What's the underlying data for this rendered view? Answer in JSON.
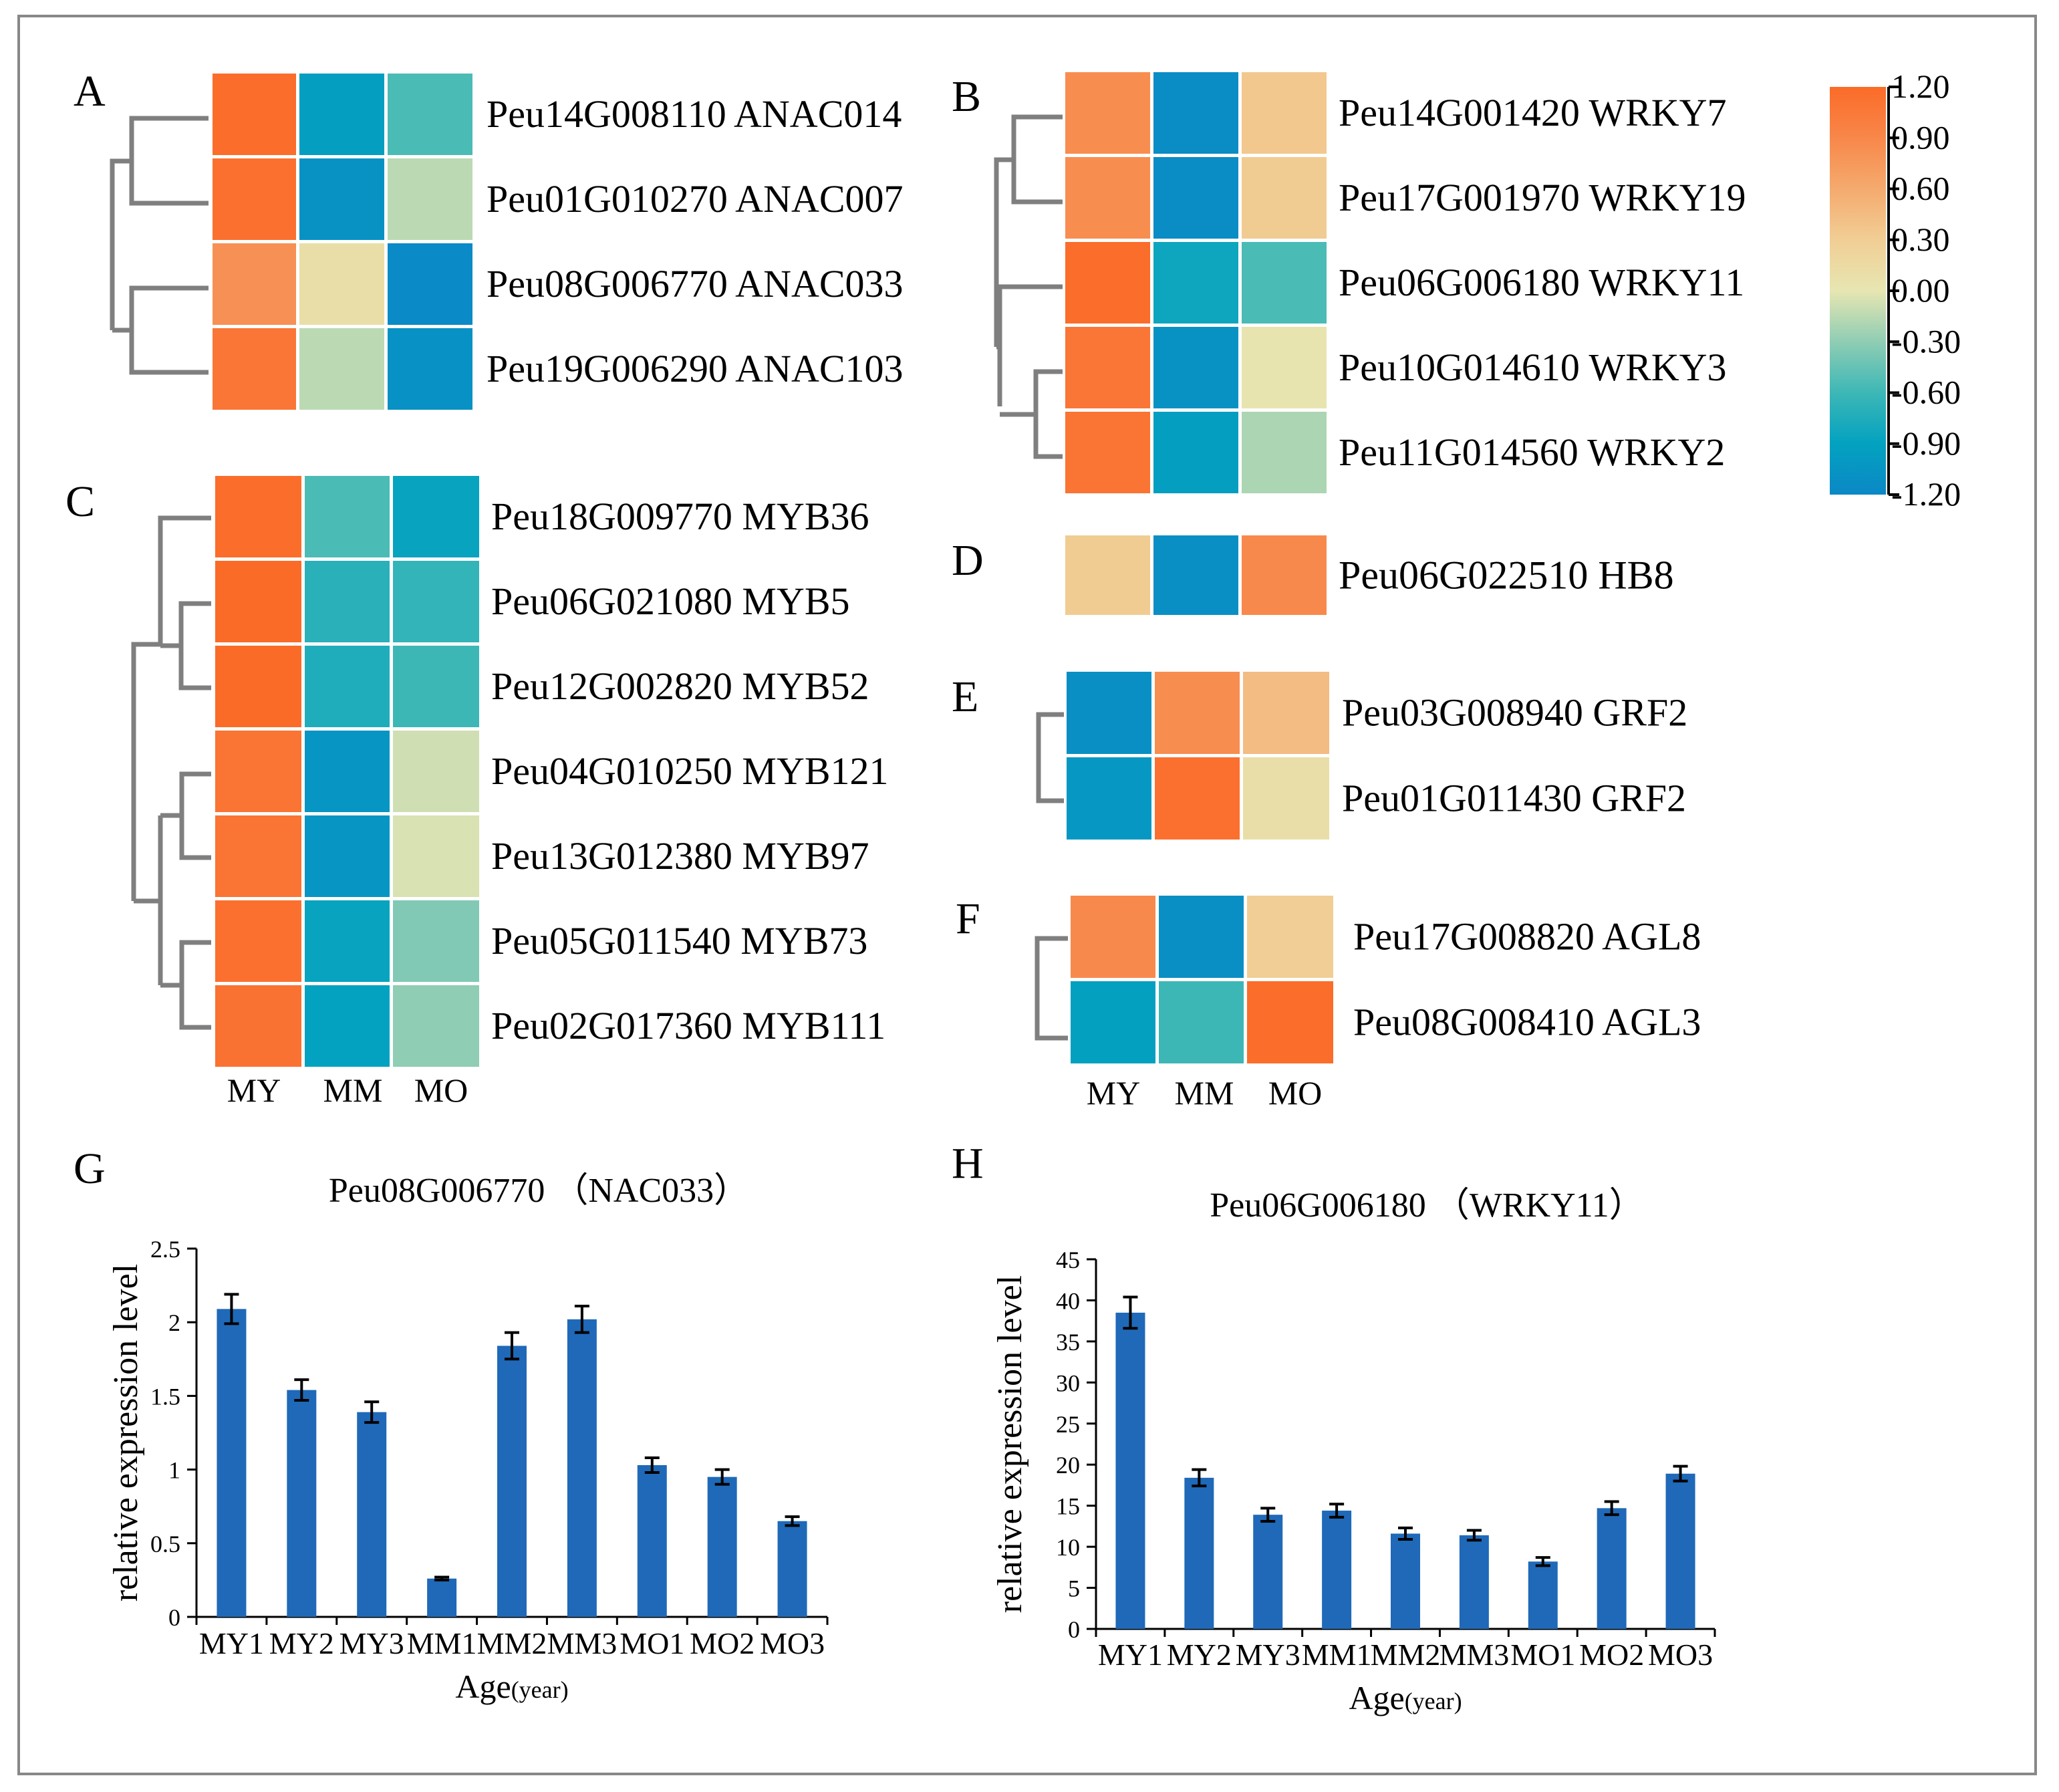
{
  "panel_labels": {
    "A": "A",
    "B": "B",
    "C": "C",
    "D": "D",
    "E": "E",
    "F": "F",
    "G": "G",
    "H": "H"
  },
  "palette": {
    "stops": [
      {
        "v": -1.2,
        "c": "#0B88C6"
      },
      {
        "v": -0.9,
        "c": "#03A2C0"
      },
      {
        "v": -0.6,
        "c": "#3DB7B6"
      },
      {
        "v": -0.3,
        "c": "#8FCDB4"
      },
      {
        "v": 0.0,
        "c": "#E7E6B2"
      },
      {
        "v": 0.3,
        "c": "#F1CE95"
      },
      {
        "v": 0.6,
        "c": "#F5AA6E"
      },
      {
        "v": 0.9,
        "c": "#F8874A"
      },
      {
        "v": 1.2,
        "c": "#FB6B28"
      }
    ],
    "bar_color": "#1F69B8",
    "dendro_color": "#7f7f7f"
  },
  "legend": {
    "ticks": [
      "1.20",
      "0.90",
      "0.60",
      "0.30",
      "0.00",
      "-0.30",
      "-0.60",
      "-0.90",
      "-1.20"
    ]
  },
  "heatmaps": {
    "A": {
      "columns": [
        "MY",
        "MM",
        "MO"
      ],
      "rows": [
        {
          "label": "Peu14G008110 ANAC014",
          "values": [
            1.18,
            -0.95,
            -0.55
          ]
        },
        {
          "label": "Peu01G010270 ANAC007",
          "values": [
            1.15,
            -1.08,
            -0.15
          ]
        },
        {
          "label": "Peu08G006770 ANAC033",
          "values": [
            0.82,
            0.1,
            -1.18
          ]
        },
        {
          "label": "Peu19G006290 ANAC103",
          "values": [
            1.08,
            -0.15,
            -1.1
          ]
        }
      ]
    },
    "B": {
      "columns": [
        "MY",
        "MM",
        "MO"
      ],
      "rows": [
        {
          "label": "Peu14G001420 WRKY7",
          "values": [
            0.85,
            -1.15,
            0.35
          ]
        },
        {
          "label": "Peu17G001970 WRKY19",
          "values": [
            0.85,
            -1.15,
            0.32
          ]
        },
        {
          "label": "Peu06G006180 WRKY11",
          "values": [
            1.18,
            -0.85,
            -0.55
          ]
        },
        {
          "label": "Peu10G014610 WRKY3",
          "values": [
            1.08,
            -1.08,
            0.02
          ]
        },
        {
          "label": "Peu11G014560 WRKY2",
          "values": [
            1.1,
            -0.95,
            -0.2
          ]
        }
      ]
    },
    "C": {
      "columns": [
        "MY",
        "MM",
        "MO"
      ],
      "rows": [
        {
          "label": "Peu18G009770 MYB36",
          "values": [
            1.18,
            -0.55,
            -0.88
          ]
        },
        {
          "label": "Peu06G021080 MYB5",
          "values": [
            1.2,
            -0.7,
            -0.65
          ]
        },
        {
          "label": "Peu12G002820 MYB52",
          "values": [
            1.2,
            -0.75,
            -0.6
          ]
        },
        {
          "label": "Peu04G010250 MYB121",
          "values": [
            1.1,
            -1.05,
            -0.08
          ]
        },
        {
          "label": "Peu13G012380 MYB97",
          "values": [
            1.1,
            -1.05,
            -0.05
          ]
        },
        {
          "label": "Peu05G011540 MYB73",
          "values": [
            1.15,
            -0.88,
            -0.35
          ]
        },
        {
          "label": "Peu02G017360 MYB111",
          "values": [
            1.12,
            -0.9,
            -0.3
          ]
        }
      ]
    },
    "D": {
      "columns": [
        "MY",
        "MM",
        "MO"
      ],
      "rows": [
        {
          "label": "Peu06G022510 HB8",
          "values": [
            0.32,
            -1.12,
            0.88
          ]
        }
      ]
    },
    "E": {
      "columns": [
        "MY",
        "MM",
        "MO"
      ],
      "rows": [
        {
          "label": "Peu03G008940 GRF2",
          "values": [
            -1.12,
            0.85,
            0.45
          ]
        },
        {
          "label": "Peu01G011430 GRF2",
          "values": [
            -1.02,
            1.15,
            0.1
          ]
        }
      ]
    },
    "F": {
      "columns": [
        "MY",
        "MM",
        "MO"
      ],
      "rows": [
        {
          "label": "Peu17G008820 AGL8",
          "values": [
            0.88,
            -1.12,
            0.3
          ]
        },
        {
          "label": "Peu08G008410 AGL3",
          "values": [
            -0.92,
            -0.6,
            1.18
          ]
        }
      ]
    }
  },
  "chart_data": [
    {
      "type": "bar",
      "title": "Peu08G006770 （NAC033）",
      "xlabel": "Age",
      "xlabel_unit": "(year)",
      "ylabel": "relative expression level",
      "categories": [
        "MY1",
        "MY2",
        "MY3",
        "MM1",
        "MM2",
        "MM3",
        "MO1",
        "MO2",
        "MO3"
      ],
      "values": [
        2.09,
        1.54,
        1.39,
        0.26,
        1.84,
        2.02,
        1.03,
        0.95,
        0.65
      ],
      "errors": [
        0.1,
        0.07,
        0.07,
        0.01,
        0.09,
        0.09,
        0.05,
        0.05,
        0.03
      ],
      "ylim": [
        0,
        2.5
      ],
      "yticks": [
        "0",
        "0.5",
        "1",
        "1.5",
        "2",
        "2.5"
      ]
    },
    {
      "type": "bar",
      "title": "Peu06G006180 （WRKY11）",
      "xlabel": "Age",
      "xlabel_unit": "(year)",
      "ylabel": "relative expression level",
      "categories": [
        "MY1",
        "MY2",
        "MY3",
        "MM1",
        "MM2",
        "MM3",
        "MO1",
        "MO2",
        "MO3"
      ],
      "values": [
        38.5,
        18.4,
        13.9,
        14.4,
        11.6,
        11.4,
        8.2,
        14.7,
        18.9
      ],
      "errors": [
        1.9,
        1.0,
        0.8,
        0.8,
        0.7,
        0.6,
        0.5,
        0.8,
        0.9
      ],
      "ylim": [
        0,
        45
      ],
      "yticks": [
        "0",
        "5",
        "10",
        "15",
        "20",
        "25",
        "30",
        "35",
        "40",
        "45"
      ]
    }
  ]
}
